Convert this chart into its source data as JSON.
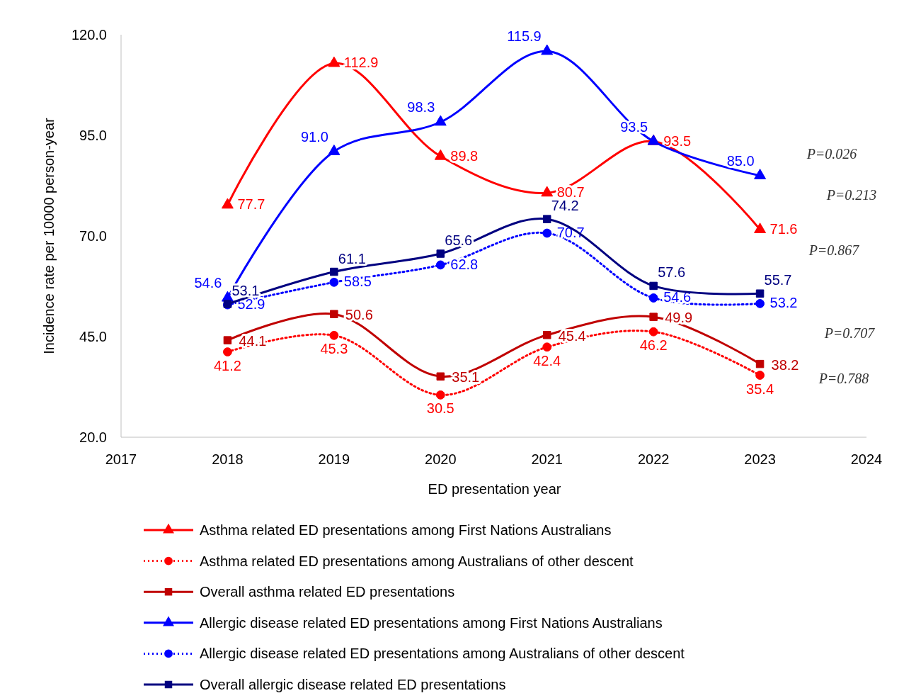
{
  "chart_data": {
    "type": "line",
    "xlabel": "ED presentation year",
    "ylabel": "Incidence rate per 10000 person-year",
    "x": [
      2018,
      2019,
      2020,
      2021,
      2022,
      2023
    ],
    "xlim": [
      2017,
      2024
    ],
    "xticks": [
      2017,
      2018,
      2019,
      2020,
      2021,
      2022,
      2023,
      2024
    ],
    "ylim": [
      20,
      120
    ],
    "yticks": [
      {
        "value": 20,
        "label": "20.0"
      },
      {
        "value": 45,
        "label": "45.0"
      },
      {
        "value": 70,
        "label": "70.0"
      },
      {
        "value": 95,
        "label": "95.0"
      },
      {
        "value": 120,
        "label": "120.0"
      }
    ],
    "grid": false,
    "legend": "bottom",
    "data_labels": true,
    "series": [
      {
        "name": "Asthma related ED presentations among First Nations Australians",
        "color": "#ff0000",
        "marker": "triangle",
        "line_style": "solid",
        "values": [
          77.7,
          112.9,
          89.8,
          80.7,
          93.5,
          71.6
        ],
        "value_labels": [
          "77.7",
          "112.9",
          "89.8",
          "80.7",
          "93.5",
          "71.6"
        ]
      },
      {
        "name": "Asthma related ED presentations among Australians of other descent",
        "color": "#ff0000",
        "marker": "circle",
        "line_style": "dotted",
        "values": [
          41.2,
          45.3,
          30.5,
          42.4,
          46.2,
          35.4
        ],
        "value_labels": [
          "41.2",
          "45.3",
          "30.5",
          "42.4",
          "46.2",
          "35.4"
        ]
      },
      {
        "name": "Overall asthma related ED presentations",
        "color": "#c00000",
        "marker": "square",
        "line_style": "solid",
        "values": [
          44.1,
          50.6,
          35.1,
          45.4,
          49.9,
          38.2
        ],
        "value_labels": [
          "44.1",
          "50.6",
          "35.1",
          "45.4",
          "49.9",
          "38.2"
        ]
      },
      {
        "name": "Allergic disease related ED presentations among First Nations Australians",
        "color": "#0000ff",
        "marker": "triangle",
        "line_style": "solid",
        "values": [
          54.6,
          91.0,
          98.3,
          115.9,
          93.5,
          85.0
        ],
        "value_labels": [
          "54.6",
          "91.0",
          "98.3",
          "115.9",
          "93.5",
          "85.0"
        ]
      },
      {
        "name": "Allergic disease related ED presentations among Australians of other descent",
        "color": "#0000ff",
        "marker": "circle",
        "line_style": "dotted",
        "values": [
          52.9,
          58.5,
          62.8,
          70.7,
          54.6,
          53.2
        ],
        "value_labels": [
          "52.9",
          "58.5",
          "62.8",
          "70.7",
          "54.6",
          "53.2"
        ]
      },
      {
        "name": "Overall allergic disease related ED presentations",
        "color": "#000080",
        "marker": "square",
        "line_style": "solid",
        "values": [
          53.1,
          61.1,
          65.6,
          74.2,
          57.6,
          55.7
        ],
        "value_labels": [
          "53.1",
          "61.1",
          "65.6",
          "74.2",
          "57.6",
          "55.7"
        ]
      }
    ],
    "annotations": [
      "P=0.026",
      "P=0.213",
      "P=0.867",
      "P=0.707",
      "P=0.788"
    ]
  }
}
